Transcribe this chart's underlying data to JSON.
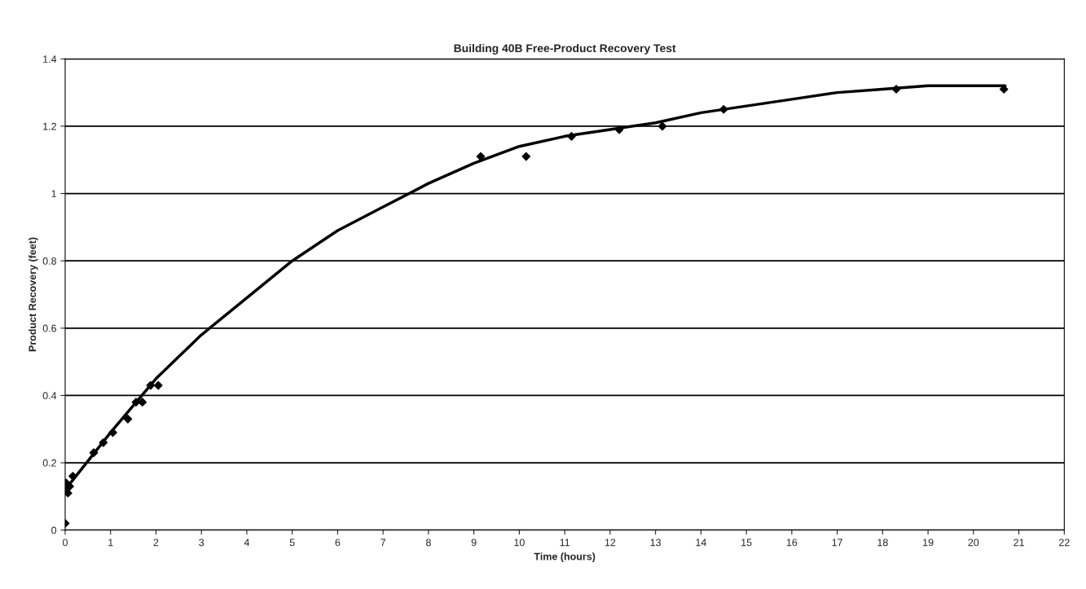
{
  "chart_data": {
    "type": "scatter",
    "title": "Building 40B Free-Product Recovery Test",
    "xlabel": "Time (hours)",
    "ylabel": "Product Recovery (feet)",
    "xlim": [
      0,
      22
    ],
    "xticks": [
      0,
      1,
      2,
      3,
      4,
      5,
      6,
      7,
      8,
      9,
      10,
      11,
      12,
      13,
      14,
      15,
      16,
      17,
      18,
      19,
      20,
      21,
      22
    ],
    "ylim": [
      0,
      1.4
    ],
    "yticks": [
      0,
      0.2,
      0.4,
      0.6,
      0.8,
      1,
      1.2,
      1.4
    ],
    "grid": "y",
    "legend": false,
    "series": [
      {
        "marker": "diamond",
        "color": "#000000",
        "x": [
          0,
          0.02,
          0.06,
          0.1,
          0.17,
          0.63,
          0.84,
          1.05,
          1.38,
          1.56,
          1.7,
          1.88,
          2.05,
          9.15,
          10.15,
          11.15,
          12.2,
          13.15,
          14.5,
          18.3,
          20.67
        ],
        "values": [
          0.02,
          0.14,
          0.11,
          0.13,
          0.16,
          0.23,
          0.26,
          0.29,
          0.33,
          0.38,
          0.38,
          0.43,
          0.43,
          1.11,
          1.11,
          1.17,
          1.19,
          1.2,
          1.25,
          1.31,
          1.31
        ]
      },
      {
        "type": "line",
        "marker": "none",
        "line_style": "solid",
        "color": "#000000",
        "x": [
          0,
          1,
          2,
          3,
          4,
          5,
          6,
          7,
          8,
          9,
          10,
          11,
          12,
          13,
          14,
          15,
          16,
          17,
          18,
          19,
          20,
          20.7
        ],
        "values": [
          0.12,
          0.29,
          0.45,
          0.58,
          0.69,
          0.8,
          0.89,
          0.96,
          1.03,
          1.09,
          1.14,
          1.17,
          1.19,
          1.21,
          1.24,
          1.26,
          1.28,
          1.3,
          1.31,
          1.32,
          1.32,
          1.32
        ]
      }
    ]
  }
}
